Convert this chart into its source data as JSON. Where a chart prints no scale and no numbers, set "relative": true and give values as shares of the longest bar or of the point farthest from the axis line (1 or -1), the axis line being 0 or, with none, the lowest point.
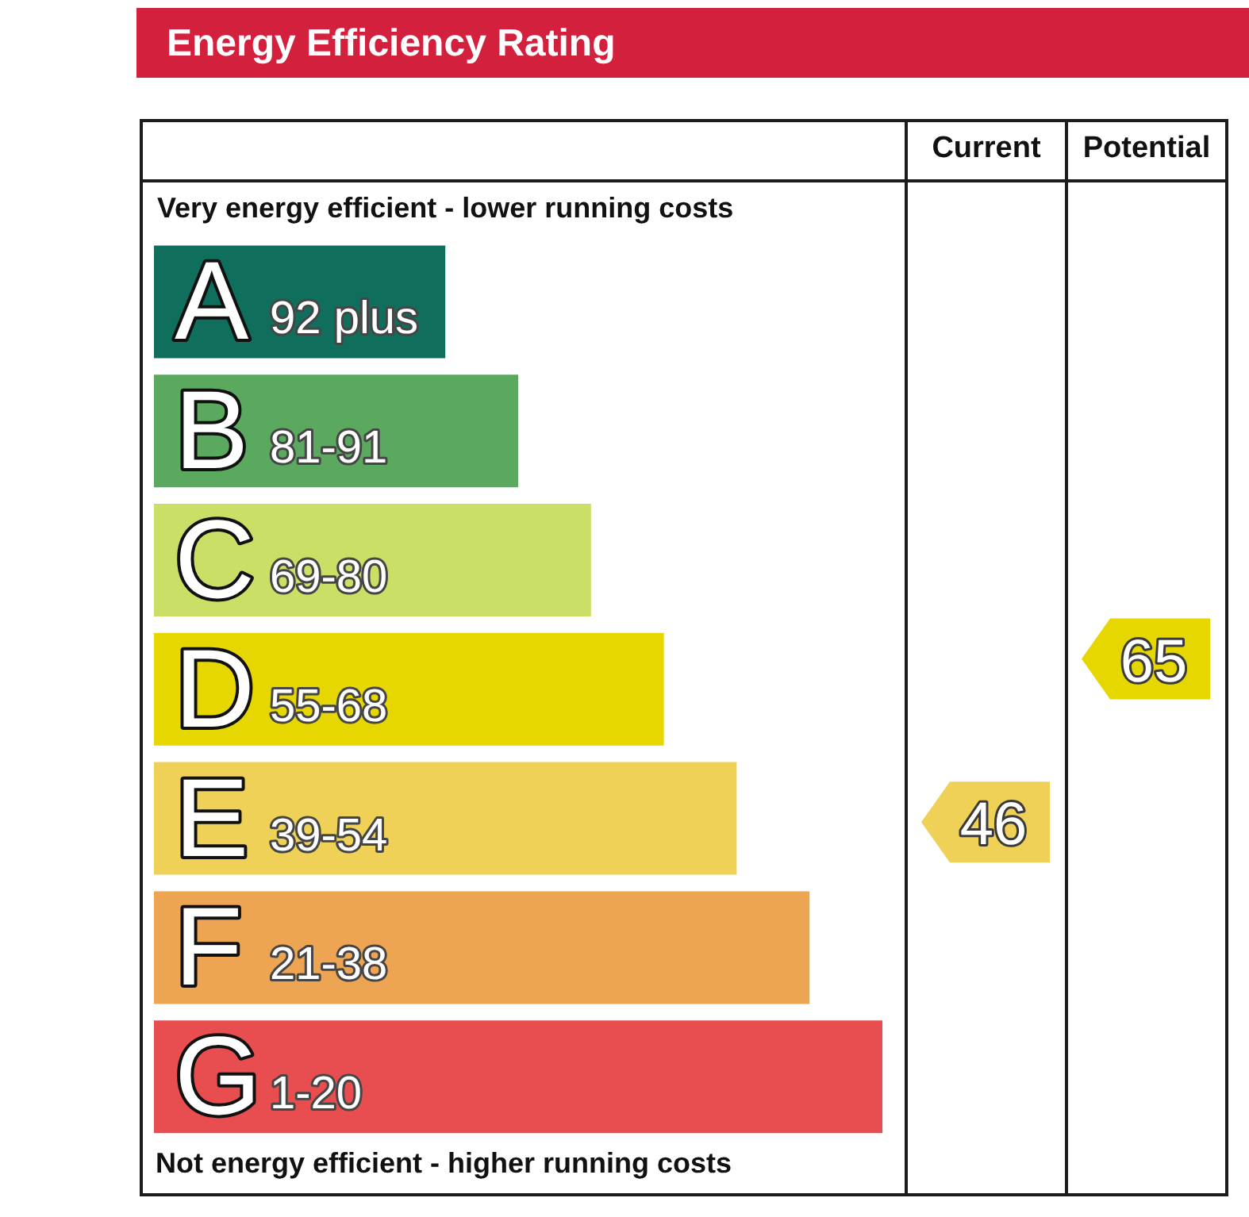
{
  "chart_data": {
    "type": "bar",
    "orientation": "horizontal",
    "relative": true,
    "title": "Energy Efficiency Rating",
    "categories": [
      "A",
      "B",
      "C",
      "D",
      "E",
      "F",
      "G"
    ],
    "values": [
      0.4,
      0.5,
      0.6,
      0.7,
      0.8,
      0.9,
      1
    ],
    "colors": [
      "#0f6e5c",
      "#5aa95e",
      "#cadf66",
      "#e6d700",
      "#efd158",
      "#eea553",
      "#e84e50"
    ],
    "annotations": [
      "Very energy efficient - lower running costs",
      "Not energy efficient - higher running costs",
      "Current",
      "Potential",
      "46",
      "65",
      "92 plus",
      "81-91",
      "69-80",
      "55-68",
      "39-54",
      "21-38",
      "1-20"
    ]
  }
}
